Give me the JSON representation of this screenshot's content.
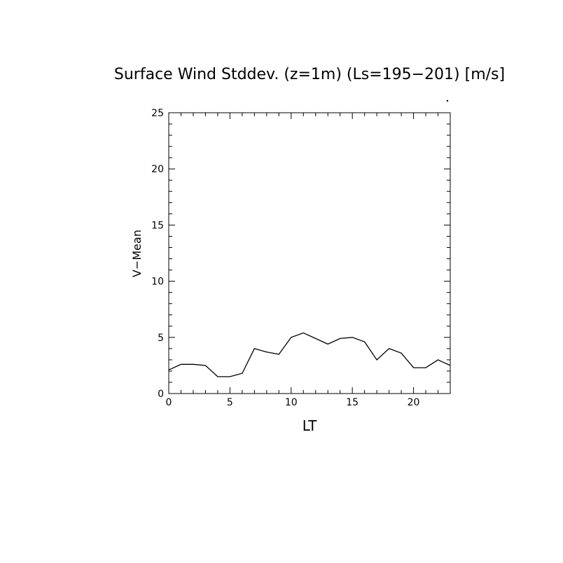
{
  "chart_data": {
    "type": "line",
    "title": "Surface Wind Stddev. (z=1m) (Ls=195−201) [m/s]",
    "xlabel": "LT",
    "ylabel": "V−Mean",
    "xlim": [
      0,
      23
    ],
    "ylim": [
      0,
      25
    ],
    "xticks": [
      0,
      5,
      10,
      15,
      20
    ],
    "yticks": [
      0,
      5,
      10,
      15,
      20,
      25
    ],
    "grid": false,
    "x": [
      0,
      1,
      2,
      3,
      4,
      5,
      6,
      7,
      8,
      9,
      10,
      11,
      12,
      13,
      14,
      15,
      16,
      17,
      18,
      19,
      20,
      21,
      22,
      23
    ],
    "values": [
      2.1,
      2.6,
      2.6,
      2.5,
      1.5,
      1.5,
      1.8,
      4.0,
      3.7,
      3.5,
      5.0,
      5.4,
      4.9,
      4.4,
      4.9,
      5.0,
      4.6,
      3.0,
      4.0,
      3.6,
      2.3,
      2.3,
      3.0,
      2.5
    ],
    "line_color": "#000000"
  }
}
